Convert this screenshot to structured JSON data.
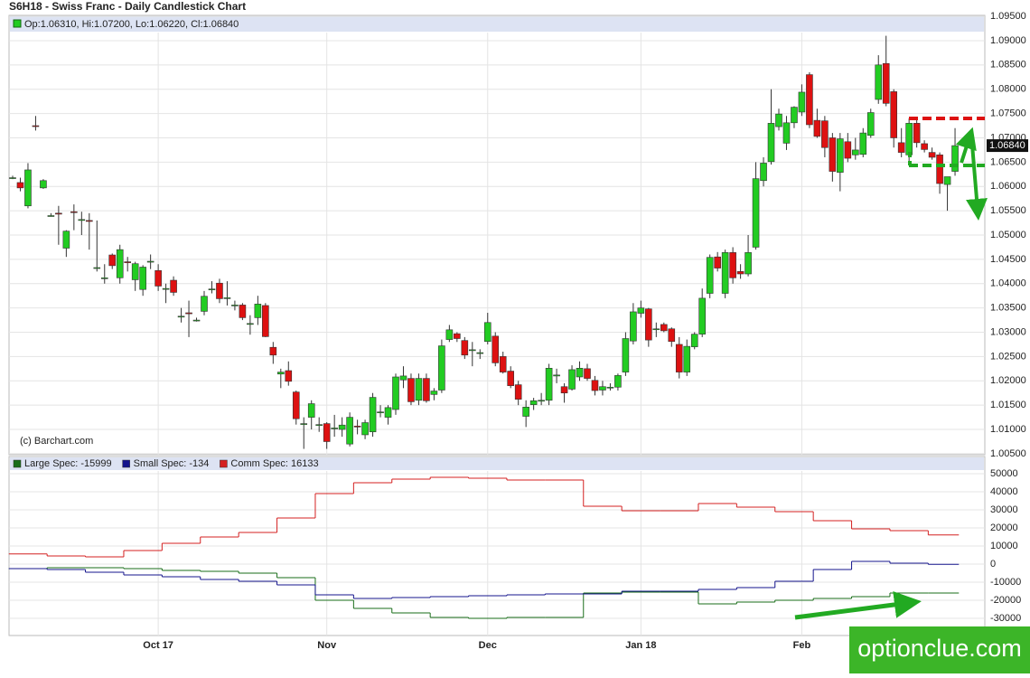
{
  "chart_data": [
    {
      "type": "candlestick",
      "title": "S6H18 - Swiss Franc - Daily Candlestick Chart",
      "ohlc_label": "Op:1.06310, Hi:1.07200, Lo:1.06220, Cl:1.06840",
      "credit": "(c) Barchart.com",
      "last_label": "1.06840",
      "up_color": "#22cc22",
      "down_color": "#dd1111",
      "grid": true,
      "categories": [
        null,
        null,
        null,
        null,
        null,
        null,
        null,
        null,
        null,
        null,
        null,
        null,
        null,
        null,
        null,
        null,
        null,
        null,
        null,
        "Oct 17",
        null,
        null,
        null,
        null,
        null,
        null,
        null,
        null,
        null,
        null,
        null,
        null,
        null,
        null,
        null,
        null,
        null,
        null,
        null,
        null,
        null,
        "Nov",
        null,
        null,
        null,
        null,
        null,
        null,
        null,
        null,
        null,
        null,
        null,
        null,
        null,
        null,
        null,
        null,
        null,
        null,
        null,
        null,
        "Dec",
        null,
        null,
        null,
        null,
        null,
        null,
        null,
        null,
        null,
        null,
        null,
        null,
        null,
        null,
        null,
        null,
        null,
        null,
        null,
        "Jan 18",
        null,
        null,
        null,
        null,
        null,
        null,
        null,
        null,
        null,
        null,
        null,
        null,
        null,
        null,
        null,
        null,
        null,
        null,
        null,
        null,
        "Feb",
        null,
        null,
        null,
        null,
        null,
        null,
        null,
        null,
        null,
        null,
        null,
        null,
        null,
        null,
        null,
        null,
        null,
        null,
        null,
        null
      ],
      "open": [
        1.0618,
        1.0608,
        1.056,
        1.0725,
        1.0597,
        1.054,
        1.0545,
        1.0473,
        1.0548,
        1.053,
        1.053,
        1.0432,
        1.0412,
        1.0459,
        1.0412,
        1.0445,
        1.0408,
        1.0388,
        1.0445,
        1.0427,
        1.0389,
        1.0407,
        1.0332,
        1.034,
        1.0325,
        1.0343,
        1.0388,
        1.0401,
        1.037,
        1.0356,
        1.0356,
        1.0318,
        1.033,
        1.0355,
        1.0269,
        1.0214,
        1.0221,
        1.0177,
        1.0112,
        1.0125,
        1.0109,
        1.0112,
        1.0102,
        1.01,
        1.007,
        1.0107,
        1.0089,
        1.0095,
        1.0135,
        1.0125,
        1.0141,
        1.0202,
        1.0205,
        1.016,
        1.0205,
        1.0172,
        1.0181,
        1.0285,
        1.0297,
        1.0283,
        1.0263,
        1.0258,
        1.0281,
        1.0292,
        1.025,
        1.022,
        1.0192,
        1.0127,
        1.0151,
        1.0159,
        1.016,
        1.021,
        1.0188,
        1.0183,
        1.0208,
        1.0225,
        1.0201,
        1.0181,
        1.0187,
        1.0187,
        1.0218,
        1.0282,
        1.0339,
        1.0348,
        1.0307,
        1.0316,
        1.0307,
        1.0275,
        1.0218,
        1.027,
        1.0296,
        1.038,
        1.0455,
        1.038,
        1.0464,
        1.0425,
        1.042,
        1.0475,
        1.0612,
        1.0651,
        1.0723,
        1.0689,
        1.0731,
        1.0753,
        1.083,
        1.0736,
        1.0735,
        1.07,
        1.0629,
        1.0692,
        1.0665,
        1.0666,
        1.0705,
        1.0779,
        1.0853,
        1.0795,
        1.069,
        1.0665,
        1.073,
        1.0688,
        1.067,
        1.0665,
        1.0604,
        1.0631
      ],
      "high": [
        1.0622,
        1.0618,
        1.0648,
        1.0745,
        1.0615,
        1.0545,
        1.056,
        1.051,
        1.0563,
        1.0548,
        1.0545,
        1.053,
        1.044,
        1.0462,
        1.048,
        1.0455,
        1.0445,
        1.0438,
        1.046,
        1.044,
        1.04,
        1.0415,
        1.035,
        1.0365,
        1.033,
        1.0385,
        1.0405,
        1.041,
        1.0405,
        1.0365,
        1.036,
        1.0335,
        1.0375,
        1.036,
        1.028,
        1.0225,
        1.024,
        1.018,
        1.0125,
        1.016,
        1.0125,
        1.0115,
        1.013,
        1.0125,
        1.0135,
        1.012,
        1.012,
        1.0175,
        1.015,
        1.015,
        1.0215,
        1.023,
        1.0215,
        1.0215,
        1.0215,
        1.0185,
        1.0285,
        1.0315,
        1.03,
        1.029,
        1.028,
        1.0265,
        1.034,
        1.03,
        1.026,
        1.023,
        1.02,
        1.016,
        1.0165,
        1.0175,
        1.0235,
        1.0225,
        1.0195,
        1.0232,
        1.024,
        1.0235,
        1.021,
        1.02,
        1.0195,
        1.0215,
        1.03,
        1.036,
        1.0365,
        1.035,
        1.032,
        1.032,
        1.031,
        1.029,
        1.0285,
        1.03,
        1.039,
        1.046,
        1.0465,
        1.047,
        1.0475,
        1.044,
        1.05,
        1.065,
        1.066,
        1.08,
        1.076,
        1.0745,
        1.0765,
        1.081,
        1.0835,
        1.076,
        1.0745,
        1.071,
        1.071,
        1.071,
        1.07,
        1.072,
        1.076,
        1.087,
        1.091,
        1.08,
        1.072,
        1.074,
        1.074,
        1.0695,
        1.068,
        1.067,
        1.062,
        1.072
      ],
      "low": [
        1.0615,
        1.059,
        1.0555,
        1.0715,
        1.0595,
        1.0538,
        1.048,
        1.0455,
        1.051,
        1.05,
        1.047,
        1.0425,
        1.04,
        1.043,
        1.04,
        1.0425,
        1.0385,
        1.0375,
        1.043,
        1.0385,
        1.036,
        1.0375,
        1.032,
        1.029,
        1.0322,
        1.0335,
        1.038,
        1.036,
        1.0355,
        1.0345,
        1.0325,
        1.0295,
        1.0315,
        1.029,
        1.0235,
        1.0185,
        1.019,
        1.011,
        1.006,
        1.01,
        1.0095,
        1.006,
        1.0085,
        1.0085,
        1.0065,
        1.009,
        1.008,
        1.0085,
        1.0125,
        1.011,
        1.013,
        1.0185,
        1.015,
        1.015,
        1.0155,
        1.016,
        1.0175,
        1.028,
        1.028,
        1.0245,
        1.023,
        1.0245,
        1.0275,
        1.023,
        1.0215,
        1.0185,
        1.015,
        1.0105,
        1.014,
        1.015,
        1.015,
        1.0195,
        1.0155,
        1.018,
        1.02,
        1.02,
        1.017,
        1.017,
        1.018,
        1.018,
        1.021,
        1.0275,
        1.033,
        1.027,
        1.029,
        1.03,
        1.027,
        1.0205,
        1.021,
        1.0265,
        1.029,
        1.037,
        1.0425,
        1.037,
        1.04,
        1.041,
        1.0415,
        1.047,
        1.06,
        1.0645,
        1.0715,
        1.0675,
        1.072,
        1.0745,
        1.072,
        1.07,
        1.066,
        1.061,
        1.059,
        1.065,
        1.0655,
        1.066,
        1.07,
        1.077,
        1.0765,
        1.068,
        1.066,
        1.065,
        1.068,
        1.067,
        1.0655,
        1.0585,
        1.055,
        1.0622
      ],
      "close": [
        1.0618,
        1.0597,
        1.0634,
        1.0724,
        1.0612,
        1.054,
        1.0543,
        1.0508,
        1.0547,
        1.0532,
        1.0528,
        1.0433,
        1.0412,
        1.0437,
        1.047,
        1.0443,
        1.0441,
        1.0434,
        1.0446,
        1.0395,
        1.039,
        1.0382,
        1.0333,
        1.0338,
        1.0325,
        1.0374,
        1.0389,
        1.0369,
        1.0371,
        1.0356,
        1.033,
        1.0318,
        1.0358,
        1.0291,
        1.0253,
        1.0218,
        1.0199,
        1.0122,
        1.0112,
        1.0153,
        1.011,
        1.0075,
        1.0103,
        1.0109,
        1.0125,
        1.0105,
        1.0114,
        1.0166,
        1.0136,
        1.0145,
        1.0208,
        1.021,
        1.0157,
        1.0205,
        1.0159,
        1.0179,
        1.0272,
        1.0305,
        1.0287,
        1.0253,
        1.0264,
        1.0258,
        1.032,
        1.0237,
        1.0218,
        1.019,
        1.0162,
        1.0146,
        1.0159,
        1.016,
        1.0226,
        1.0212,
        1.0175,
        1.0223,
        1.0226,
        1.0205,
        1.018,
        1.0188,
        1.0187,
        1.0211,
        1.0287,
        1.0342,
        1.035,
        1.0284,
        1.0307,
        1.0303,
        1.0281,
        1.0218,
        1.0271,
        1.0296,
        1.037,
        1.0454,
        1.0432,
        1.0464,
        1.0412,
        1.042,
        1.0464,
        1.0616,
        1.0648,
        1.073,
        1.0749,
        1.0731,
        1.0763,
        1.0794,
        1.0727,
        1.0703,
        1.068,
        1.0631,
        1.0698,
        1.0658,
        1.0675,
        1.071,
        1.0752,
        1.085,
        1.0771,
        1.07,
        1.067,
        1.073,
        1.069,
        1.0676,
        1.066,
        1.0606,
        1.062,
        1.0684
      ],
      "ylim": [
        1.0048,
        1.0952
      ],
      "yticks": [
        {
          "value": 1.005,
          "label": "1.00500"
        },
        {
          "value": 1.01,
          "label": "1.01000"
        },
        {
          "value": 1.015,
          "label": "1.01500"
        },
        {
          "value": 1.02,
          "label": "1.02000"
        },
        {
          "value": 1.025,
          "label": "1.02500"
        },
        {
          "value": 1.03,
          "label": "1.03000"
        },
        {
          "value": 1.035,
          "label": "1.03500"
        },
        {
          "value": 1.04,
          "label": "1.04000"
        },
        {
          "value": 1.045,
          "label": "1.04500"
        },
        {
          "value": 1.05,
          "label": "1.05000"
        },
        {
          "value": 1.055,
          "label": "1.05500"
        },
        {
          "value": 1.06,
          "label": "1.06000"
        },
        {
          "value": 1.065,
          "label": "1.06500"
        },
        {
          "value": 1.07,
          "label": "1.07000"
        },
        {
          "value": 1.075,
          "label": "1.07500"
        },
        {
          "value": 1.08,
          "label": "1.08000"
        },
        {
          "value": 1.085,
          "label": "1.08500"
        },
        {
          "value": 1.09,
          "label": "1.09000"
        },
        {
          "value": 1.095,
          "label": "1.09500"
        }
      ]
    },
    {
      "type": "step",
      "grid": true,
      "series": [
        {
          "name": "Large Spec: -15999",
          "color": "#1a6e1a",
          "values": [
            -2500,
            -2000,
            -2000,
            -2500,
            -3500,
            -4000,
            -5000,
            -7500,
            -20000,
            -24500,
            -27000,
            -29500,
            -30000,
            -29500,
            -29500,
            -16000,
            -15500,
            -15500,
            -22000,
            -21000,
            -20000,
            -19000,
            -18000,
            -16000,
            -15999
          ]
        },
        {
          "name": "Small Spec: -134",
          "color": "#14148c",
          "values": [
            -2500,
            -3000,
            -4500,
            -6000,
            -7000,
            -8500,
            -9500,
            -11500,
            -17000,
            -19000,
            -18500,
            -18000,
            -17500,
            -17000,
            -16500,
            -16500,
            -15000,
            -15000,
            -14000,
            -13000,
            -9500,
            -3000,
            1500,
            500,
            -134
          ]
        },
        {
          "name": "Comm Spec: 16133",
          "color": "#d42020",
          "values": [
            5600,
            4500,
            4000,
            7500,
            11500,
            15000,
            17500,
            25500,
            39000,
            45000,
            47000,
            48000,
            47500,
            46500,
            46500,
            32000,
            29500,
            29500,
            33500,
            31500,
            29000,
            24000,
            19500,
            18500,
            16133
          ]
        }
      ],
      "ylim": [
        -39500,
        59500
      ],
      "yticks": [
        -30000,
        -20000,
        -10000,
        0,
        10000,
        20000,
        30000,
        40000,
        50000
      ]
    }
  ],
  "watermark": "optionclue.com"
}
